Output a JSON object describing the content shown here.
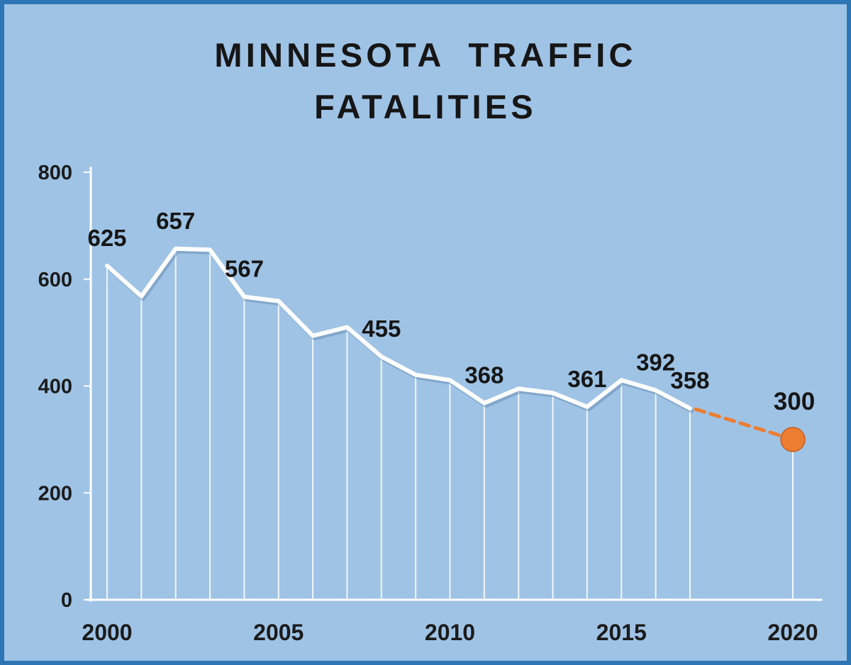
{
  "page": {
    "background_color": "#9fc3e5",
    "border_color": "#2e75b6"
  },
  "chart_data": {
    "type": "line",
    "title": "MINNESOTA TRAFFIC FATALITIES",
    "title_lines": [
      "MINNESOTA TRAFFIC",
      "FATALITIES"
    ],
    "xlabel": "",
    "ylabel": "",
    "x": [
      2000,
      2001,
      2002,
      2003,
      2004,
      2005,
      2006,
      2007,
      2008,
      2009,
      2010,
      2011,
      2012,
      2013,
      2014,
      2015,
      2016,
      2017
    ],
    "series": [
      {
        "name": "Minnesota traffic fatalities",
        "values": [
          625,
          568,
          657,
          655,
          567,
          559,
          494,
          510,
          455,
          421,
          411,
          368,
          395,
          387,
          361,
          411,
          392,
          358
        ]
      }
    ],
    "point_labels": [
      {
        "x": 2000,
        "value": 625,
        "label": "625"
      },
      {
        "x": 2002,
        "value": 657,
        "label": "657"
      },
      {
        "x": 2004,
        "value": 567,
        "label": "567"
      },
      {
        "x": 2008,
        "value": 455,
        "label": "455"
      },
      {
        "x": 2011,
        "value": 368,
        "label": "368"
      },
      {
        "x": 2014,
        "value": 361,
        "label": "361"
      },
      {
        "x": 2016,
        "value": 392,
        "label": "392"
      },
      {
        "x": 2017,
        "value": 358,
        "label": "358"
      }
    ],
    "projection": {
      "x": 2020,
      "value": 300,
      "label": "300",
      "line_style": "dashed",
      "marker": "circle"
    },
    "x_ticks": [
      2000,
      2005,
      2010,
      2015,
      2020
    ],
    "y_ticks": [
      0,
      200,
      400,
      600,
      800
    ],
    "xlim": [
      2000,
      2020
    ],
    "ylim": [
      0,
      800
    ],
    "grid": false,
    "legend": "none",
    "drop_lines": true,
    "colors": {
      "background": "#9fc3e5",
      "series_line": "#ffffff",
      "accent_orange": "#ed7d31",
      "text": "#1a1a1a",
      "frame_border": "#2e75b6",
      "drop_line": "#ffffff"
    }
  }
}
